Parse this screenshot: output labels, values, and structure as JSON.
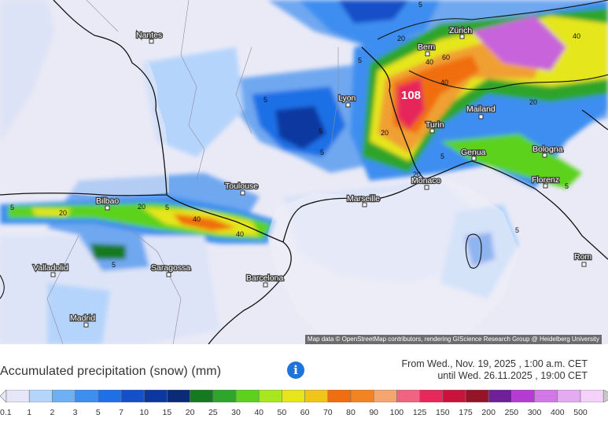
{
  "map": {
    "cities": [
      {
        "id": "nantes",
        "name": "Nantes"
      },
      {
        "id": "bern",
        "name": "Bern"
      },
      {
        "id": "zurich",
        "name": "Zürich"
      },
      {
        "id": "lyon",
        "name": "Lyon"
      },
      {
        "id": "turin",
        "name": "Turin"
      },
      {
        "id": "mailand",
        "name": "Mailand"
      },
      {
        "id": "genua",
        "name": "Genua"
      },
      {
        "id": "bologna",
        "name": "Bologna"
      },
      {
        "id": "toulouse",
        "name": "Toulouse"
      },
      {
        "id": "marseille",
        "name": "Marseille"
      },
      {
        "id": "monaco",
        "name": "Monaco"
      },
      {
        "id": "florenz",
        "name": "Florenz"
      },
      {
        "id": "bilbao",
        "name": "Bilbao"
      },
      {
        "id": "valladolid",
        "name": "Valladolid"
      },
      {
        "id": "saragossa",
        "name": "Saragossa"
      },
      {
        "id": "barcelona",
        "name": "Barcelona"
      },
      {
        "id": "madrid",
        "name": "Madrid"
      },
      {
        "id": "rom",
        "name": "Rom"
      }
    ],
    "peak_value": "108",
    "contour_labels": [
      "5",
      "5",
      "5",
      "5",
      "5",
      "5",
      "5",
      "5",
      "5",
      "5",
      "20",
      "20",
      "20",
      "20",
      "20",
      "40",
      "40",
      "40",
      "40",
      "40",
      "60",
      "20",
      "5"
    ],
    "attribution": "Map data © OpenStreetMap contributors, rendering GIScience Research Group @ Heidelberg University"
  },
  "legend": {
    "title": "Accumulated precipitation (snow) (mm)",
    "info_icon": "info-icon",
    "from_text": "From Wed., Nov. 19, 2025 ,  1:00 a.m. CET",
    "until_text": "until Wed. 26.11.2025 , 19:00 CET",
    "scale_labels": [
      "0.1",
      "1",
      "2",
      "3",
      "5",
      "7",
      "10",
      "15",
      "20",
      "25",
      "30",
      "40",
      "50",
      "60",
      "70",
      "80",
      "90",
      "100",
      "125",
      "150",
      "175",
      "200",
      "250",
      "300",
      "400",
      "500"
    ],
    "scale_colors": [
      "#e6e6f8",
      "#b5d4fb",
      "#6fb0f5",
      "#3e8ef0",
      "#1f6fe6",
      "#1650c8",
      "#0d37a0",
      "#0a2c78",
      "#137a1e",
      "#2fa52c",
      "#5cd21f",
      "#a8e61f",
      "#e6e61a",
      "#f0c419",
      "#f06e0f",
      "#f28424",
      "#f5a56e",
      "#f06482",
      "#e6285a",
      "#c8143c",
      "#961428",
      "#6e2096",
      "#b43cd2",
      "#d278e6",
      "#e6aaf0",
      "#f5d2fa",
      "#c8c8c8"
    ]
  }
}
